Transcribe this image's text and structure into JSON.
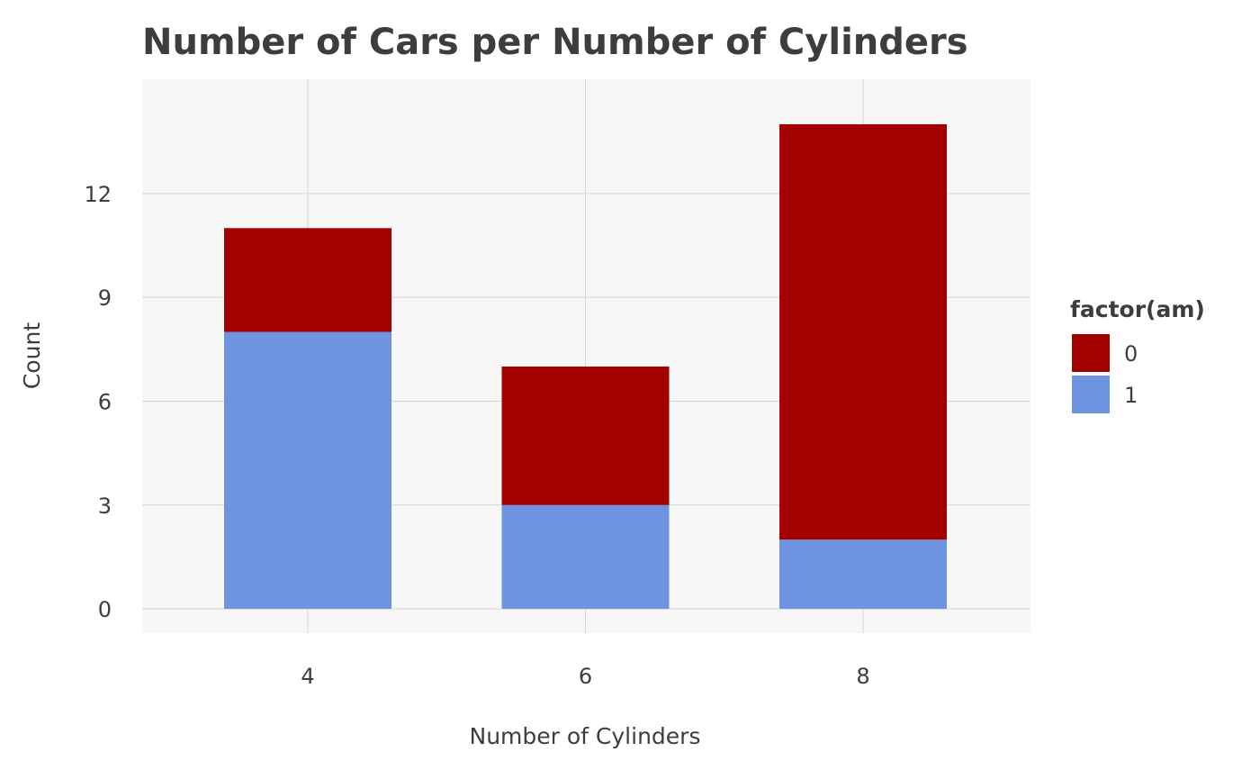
{
  "chart_data": {
    "type": "bar",
    "stacked": true,
    "title": "Number of Cars per Number of Cylinders",
    "xlabel": "Number of Cylinders",
    "ylabel": "Count",
    "categories": [
      "4",
      "6",
      "8"
    ],
    "series": [
      {
        "name": "1",
        "values": [
          8,
          3,
          2
        ],
        "color": "#6d93e1"
      },
      {
        "name": "0",
        "values": [
          3,
          4,
          12
        ],
        "color": "#a30000"
      }
    ],
    "y_ticks": [
      "0",
      "3",
      "6",
      "9",
      "12"
    ],
    "ylim": [
      -0.7,
      15.3
    ],
    "grid": true,
    "legend": {
      "title": "factor(am)",
      "position": "right",
      "order": [
        "0",
        "1"
      ]
    },
    "panel_background": "#f7f7f7",
    "grid_color": "#d6d6d6"
  }
}
